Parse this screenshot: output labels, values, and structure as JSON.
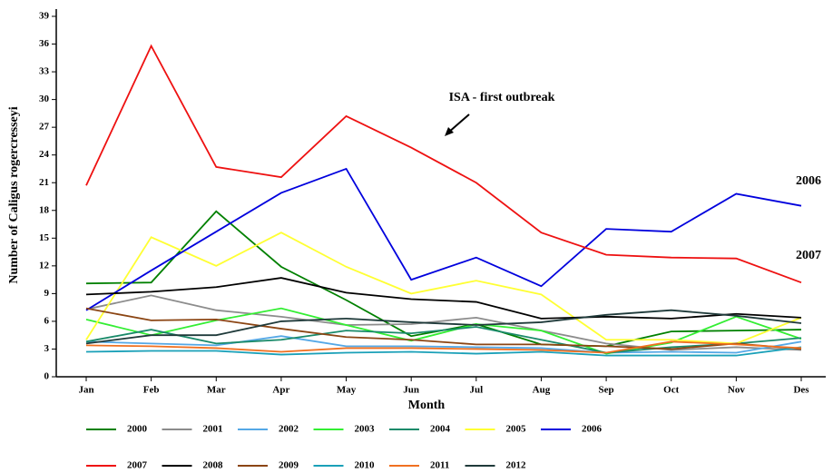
{
  "chart_data": {
    "type": "line",
    "x_label": "Month",
    "y_label": "Number of Caligus rogercresseyi",
    "annotations": [
      "ISA - first outbreak",
      "2006",
      "2007"
    ],
    "categories": [
      "Jan",
      "Feb",
      "Mar",
      "Apr",
      "May",
      "Jun",
      "Jul",
      "Aug",
      "Sep",
      "Oct",
      "Nov",
      "Des"
    ],
    "ylim": [
      0,
      39
    ],
    "yticks": [
      0,
      3,
      6,
      9,
      12,
      15,
      18,
      21,
      24,
      27,
      30,
      33,
      36,
      39
    ],
    "series": [
      {
        "name": "2000",
        "color": "#008000",
        "values": [
          10.1,
          10.2,
          17.9,
          11.9,
          8.3,
          4.4,
          5.7,
          3.5,
          3.3,
          4.9,
          5.0,
          5.1
        ]
      },
      {
        "name": "2001",
        "color": "#8c8c8c",
        "values": [
          7.3,
          8.8,
          7.2,
          6.5,
          5.6,
          5.7,
          6.4,
          5.0,
          3.6,
          2.9,
          3.2,
          2.9
        ]
      },
      {
        "name": "2002",
        "color": "#55a8e6",
        "values": [
          3.8,
          3.6,
          3.4,
          4.4,
          3.3,
          3.3,
          3.2,
          3.1,
          2.6,
          2.7,
          2.6,
          3.8
        ]
      },
      {
        "name": "2003",
        "color": "#33ee33",
        "values": [
          6.2,
          4.5,
          6.1,
          7.4,
          5.6,
          3.9,
          5.7,
          5.0,
          2.5,
          3.7,
          6.5,
          4.1
        ]
      },
      {
        "name": "2004",
        "color": "#1a8a6a",
        "values": [
          3.8,
          5.1,
          3.6,
          4.0,
          5.0,
          4.7,
          5.4,
          4.0,
          2.6,
          3.2,
          3.6,
          4.2
        ]
      },
      {
        "name": "2005",
        "color": "#ffff33",
        "values": [
          4.0,
          15.1,
          12.0,
          15.6,
          11.9,
          9.0,
          10.4,
          8.9,
          4.0,
          4.0,
          3.6,
          6.4
        ]
      },
      {
        "name": "2006",
        "color": "#0000dd",
        "values": [
          7.2,
          11.5,
          15.7,
          19.9,
          22.5,
          10.5,
          12.9,
          9.8,
          16.0,
          15.7,
          19.8,
          18.5
        ]
      },
      {
        "name": "2007",
        "color": "#ee1111",
        "values": [
          20.7,
          35.8,
          22.7,
          21.6,
          28.2,
          24.8,
          21.0,
          15.6,
          13.2,
          12.9,
          12.8,
          10.2
        ]
      },
      {
        "name": "2008",
        "color": "#000000",
        "values": [
          8.9,
          9.2,
          9.7,
          10.7,
          9.1,
          8.4,
          8.1,
          6.3,
          6.5,
          6.3,
          6.8,
          6.4
        ]
      },
      {
        "name": "2009",
        "color": "#8b4513",
        "values": [
          7.4,
          6.1,
          6.2,
          5.2,
          4.3,
          4.0,
          3.5,
          3.5,
          3.3,
          3.0,
          3.6,
          3.0
        ]
      },
      {
        "name": "2010",
        "color": "#1aa0b8",
        "values": [
          2.7,
          2.8,
          2.8,
          2.4,
          2.6,
          2.7,
          2.5,
          2.7,
          2.3,
          2.3,
          2.3,
          3.2
        ]
      },
      {
        "name": "2011",
        "color": "#f07020",
        "values": [
          3.4,
          3.3,
          3.1,
          2.7,
          3.1,
          3.1,
          3.0,
          2.9,
          2.6,
          3.8,
          3.5,
          3.1
        ]
      },
      {
        "name": "2012",
        "color": "#1f3a3a",
        "values": [
          3.6,
          4.5,
          4.5,
          6.0,
          6.3,
          5.9,
          5.6,
          5.9,
          6.7,
          7.2,
          6.6,
          5.8
        ]
      }
    ]
  }
}
